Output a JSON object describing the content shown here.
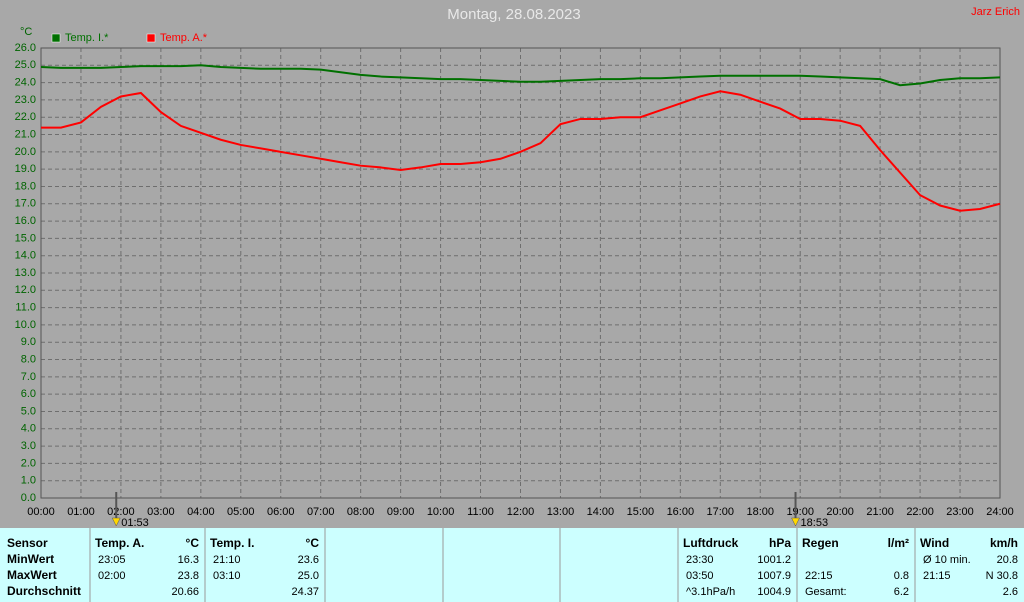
{
  "chart_data": {
    "type": "line",
    "title": "Montag, 28.08.2023",
    "author": "Jarz Erich",
    "y_unit": "°C",
    "axis_color": "#006400",
    "x": [
      0,
      0.5,
      1,
      1.5,
      2,
      2.5,
      3,
      3.5,
      4,
      4.5,
      5,
      5.5,
      6,
      6.5,
      7,
      7.5,
      8,
      8.5,
      9,
      9.5,
      10,
      10.5,
      11,
      11.5,
      12,
      12.5,
      13,
      13.5,
      14,
      14.5,
      15,
      15.5,
      16,
      16.5,
      17,
      17.5,
      18,
      18.5,
      19,
      19.5,
      20,
      20.5,
      21,
      21.5,
      22,
      22.5,
      23,
      23.5,
      24
    ],
    "series": [
      {
        "name": "Temp. I.*",
        "color": "#007000",
        "values": [
          24.9,
          24.85,
          24.85,
          24.85,
          24.9,
          24.95,
          24.95,
          24.95,
          25.0,
          24.9,
          24.85,
          24.8,
          24.8,
          24.8,
          24.75,
          24.6,
          24.45,
          24.35,
          24.3,
          24.25,
          24.2,
          24.2,
          24.15,
          24.1,
          24.05,
          24.05,
          24.1,
          24.15,
          24.2,
          24.2,
          24.25,
          24.25,
          24.3,
          24.35,
          24.4,
          24.4,
          24.4,
          24.4,
          24.4,
          24.35,
          24.3,
          24.25,
          24.2,
          23.85,
          23.95,
          24.15,
          24.25,
          24.25,
          24.3
        ]
      },
      {
        "name": "Temp. A.*",
        "color": "#ff0000",
        "values": [
          21.4,
          21.4,
          21.7,
          22.6,
          23.2,
          23.4,
          22.3,
          21.5,
          21.1,
          20.7,
          20.4,
          20.2,
          20.0,
          19.8,
          19.6,
          19.4,
          19.2,
          19.1,
          18.95,
          19.1,
          19.3,
          19.3,
          19.4,
          19.6,
          20.0,
          20.5,
          21.6,
          21.9,
          21.9,
          22.0,
          22.0,
          22.4,
          22.8,
          23.2,
          23.5,
          23.3,
          22.9,
          22.5,
          21.9,
          21.9,
          21.8,
          21.5,
          20.1,
          18.8,
          17.5,
          16.9,
          16.6,
          16.7,
          17.0
        ]
      }
    ],
    "xlim": [
      0,
      24
    ],
    "ylim": [
      0,
      26
    ],
    "grid": true,
    "xticks": [
      {
        "value": 0,
        "label": "00:00"
      },
      {
        "value": 1,
        "label": "01:00"
      },
      {
        "value": 2,
        "label": "02:00"
      },
      {
        "value": 3,
        "label": "03:00"
      },
      {
        "value": 4,
        "label": "04:00"
      },
      {
        "value": 5,
        "label": "05:00"
      },
      {
        "value": 6,
        "label": "06:00"
      },
      {
        "value": 7,
        "label": "07:00"
      },
      {
        "value": 8,
        "label": "08:00"
      },
      {
        "value": 9,
        "label": "09:00"
      },
      {
        "value": 10,
        "label": "10:00"
      },
      {
        "value": 11,
        "label": "11:00"
      },
      {
        "value": 12,
        "label": "12:00"
      },
      {
        "value": 13,
        "label": "13:00"
      },
      {
        "value": 14,
        "label": "14:00"
      },
      {
        "value": 15,
        "label": "15:00"
      },
      {
        "value": 16,
        "label": "16:00"
      },
      {
        "value": 17,
        "label": "17:00"
      },
      {
        "value": 18,
        "label": "18:00"
      },
      {
        "value": 19,
        "label": "19:00"
      },
      {
        "value": 20,
        "label": "20:00"
      },
      {
        "value": 21,
        "label": "21:00"
      },
      {
        "value": 22,
        "label": "22:00"
      },
      {
        "value": 23,
        "label": "23:00"
      },
      {
        "value": 24,
        "label": "24:00"
      }
    ],
    "yticks": [
      {
        "value": 0,
        "label": "0.0"
      },
      {
        "value": 1,
        "label": "1.0"
      },
      {
        "value": 2,
        "label": "2.0"
      },
      {
        "value": 3,
        "label": "3.0"
      },
      {
        "value": 4,
        "label": "4.0"
      },
      {
        "value": 5,
        "label": "5.0"
      },
      {
        "value": 6,
        "label": "6.0"
      },
      {
        "value": 7,
        "label": "7.0"
      },
      {
        "value": 8,
        "label": "8.0"
      },
      {
        "value": 9,
        "label": "9.0"
      },
      {
        "value": 10,
        "label": "10.0"
      },
      {
        "value": 11,
        "label": "11.0"
      },
      {
        "value": 12,
        "label": "12.0"
      },
      {
        "value": 13,
        "label": "13.0"
      },
      {
        "value": 14,
        "label": "14.0"
      },
      {
        "value": 15,
        "label": "15.0"
      },
      {
        "value": 16,
        "label": "16.0"
      },
      {
        "value": 17,
        "label": "17.0"
      },
      {
        "value": 18,
        "label": "18.0"
      },
      {
        "value": 19,
        "label": "19.0"
      },
      {
        "value": 20,
        "label": "20.0"
      },
      {
        "value": 21,
        "label": "21.0"
      },
      {
        "value": 22,
        "label": "22.0"
      },
      {
        "value": 23,
        "label": "23.0"
      },
      {
        "value": 24,
        "label": "24.0"
      },
      {
        "value": 25,
        "label": "25.0"
      },
      {
        "value": 26,
        "label": "26.0"
      }
    ],
    "markers": [
      {
        "x": 1.883,
        "label": "01:53"
      },
      {
        "x": 18.883,
        "label": "18:53"
      }
    ]
  },
  "stats": {
    "labels": [
      "Sensor",
      "MinWert",
      "MaxWert",
      "Durchschnitt"
    ],
    "blocks": [
      {
        "header": "Temp. A.",
        "unit": "°C",
        "rows": [
          {
            "time": "23:05",
            "value": "16.3"
          },
          {
            "time": "02:00",
            "value": "23.8"
          },
          {
            "value": "20.66"
          }
        ]
      },
      {
        "header": "Temp. I.",
        "unit": "°C",
        "rows": [
          {
            "time": "21:10",
            "value": "23.6"
          },
          {
            "time": "03:10",
            "value": "25.0"
          },
          {
            "value": "24.37"
          }
        ]
      },
      null,
      null,
      null,
      {
        "header": "Luftdruck",
        "unit": "hPa",
        "rows": [
          {
            "time": "23:30",
            "value": "1001.2"
          },
          {
            "time": "03:50",
            "value": "1007.9"
          },
          {
            "time": "^3.1hPa/h",
            "value": "1004.9"
          }
        ]
      },
      {
        "header": "Regen",
        "unit": "l/m²",
        "rows": [
          null,
          {
            "time": "22:15",
            "value": "0.8"
          },
          {
            "time": "Gesamt:",
            "value": "6.2"
          }
        ]
      },
      {
        "header": "Wind",
        "unit": "km/h",
        "rows": [
          {
            "time": "Ø 10 min.",
            "value": "20.8"
          },
          {
            "time": "21:15",
            "value": "N 30.8"
          },
          {
            "value": "2.6"
          }
        ]
      }
    ]
  }
}
